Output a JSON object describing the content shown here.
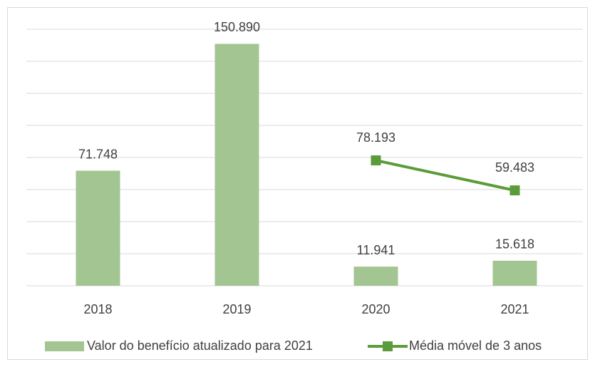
{
  "chart_data": {
    "type": "bar",
    "categories": [
      "2018",
      "2019",
      "2020",
      "2021"
    ],
    "series": [
      {
        "name": "Valor do benefício atualizado para 2021",
        "type": "bar",
        "color": "#a3c592",
        "values": [
          71748,
          150890,
          11941,
          15618
        ],
        "value_labels": [
          "71.748",
          "150.890",
          "11.941",
          "15.618"
        ]
      },
      {
        "name": "Média móvel de 3 anos",
        "type": "line",
        "color": "#5b9b3b",
        "values": [
          null,
          null,
          78193,
          59483
        ],
        "value_labels": [
          null,
          null,
          "78.193",
          "59.483"
        ]
      }
    ],
    "ylim": [
      0,
      160000
    ],
    "yticks": [
      0,
      20000,
      40000,
      60000,
      80000,
      100000,
      120000,
      140000,
      160000
    ],
    "grid": true,
    "legend": "bottom"
  }
}
